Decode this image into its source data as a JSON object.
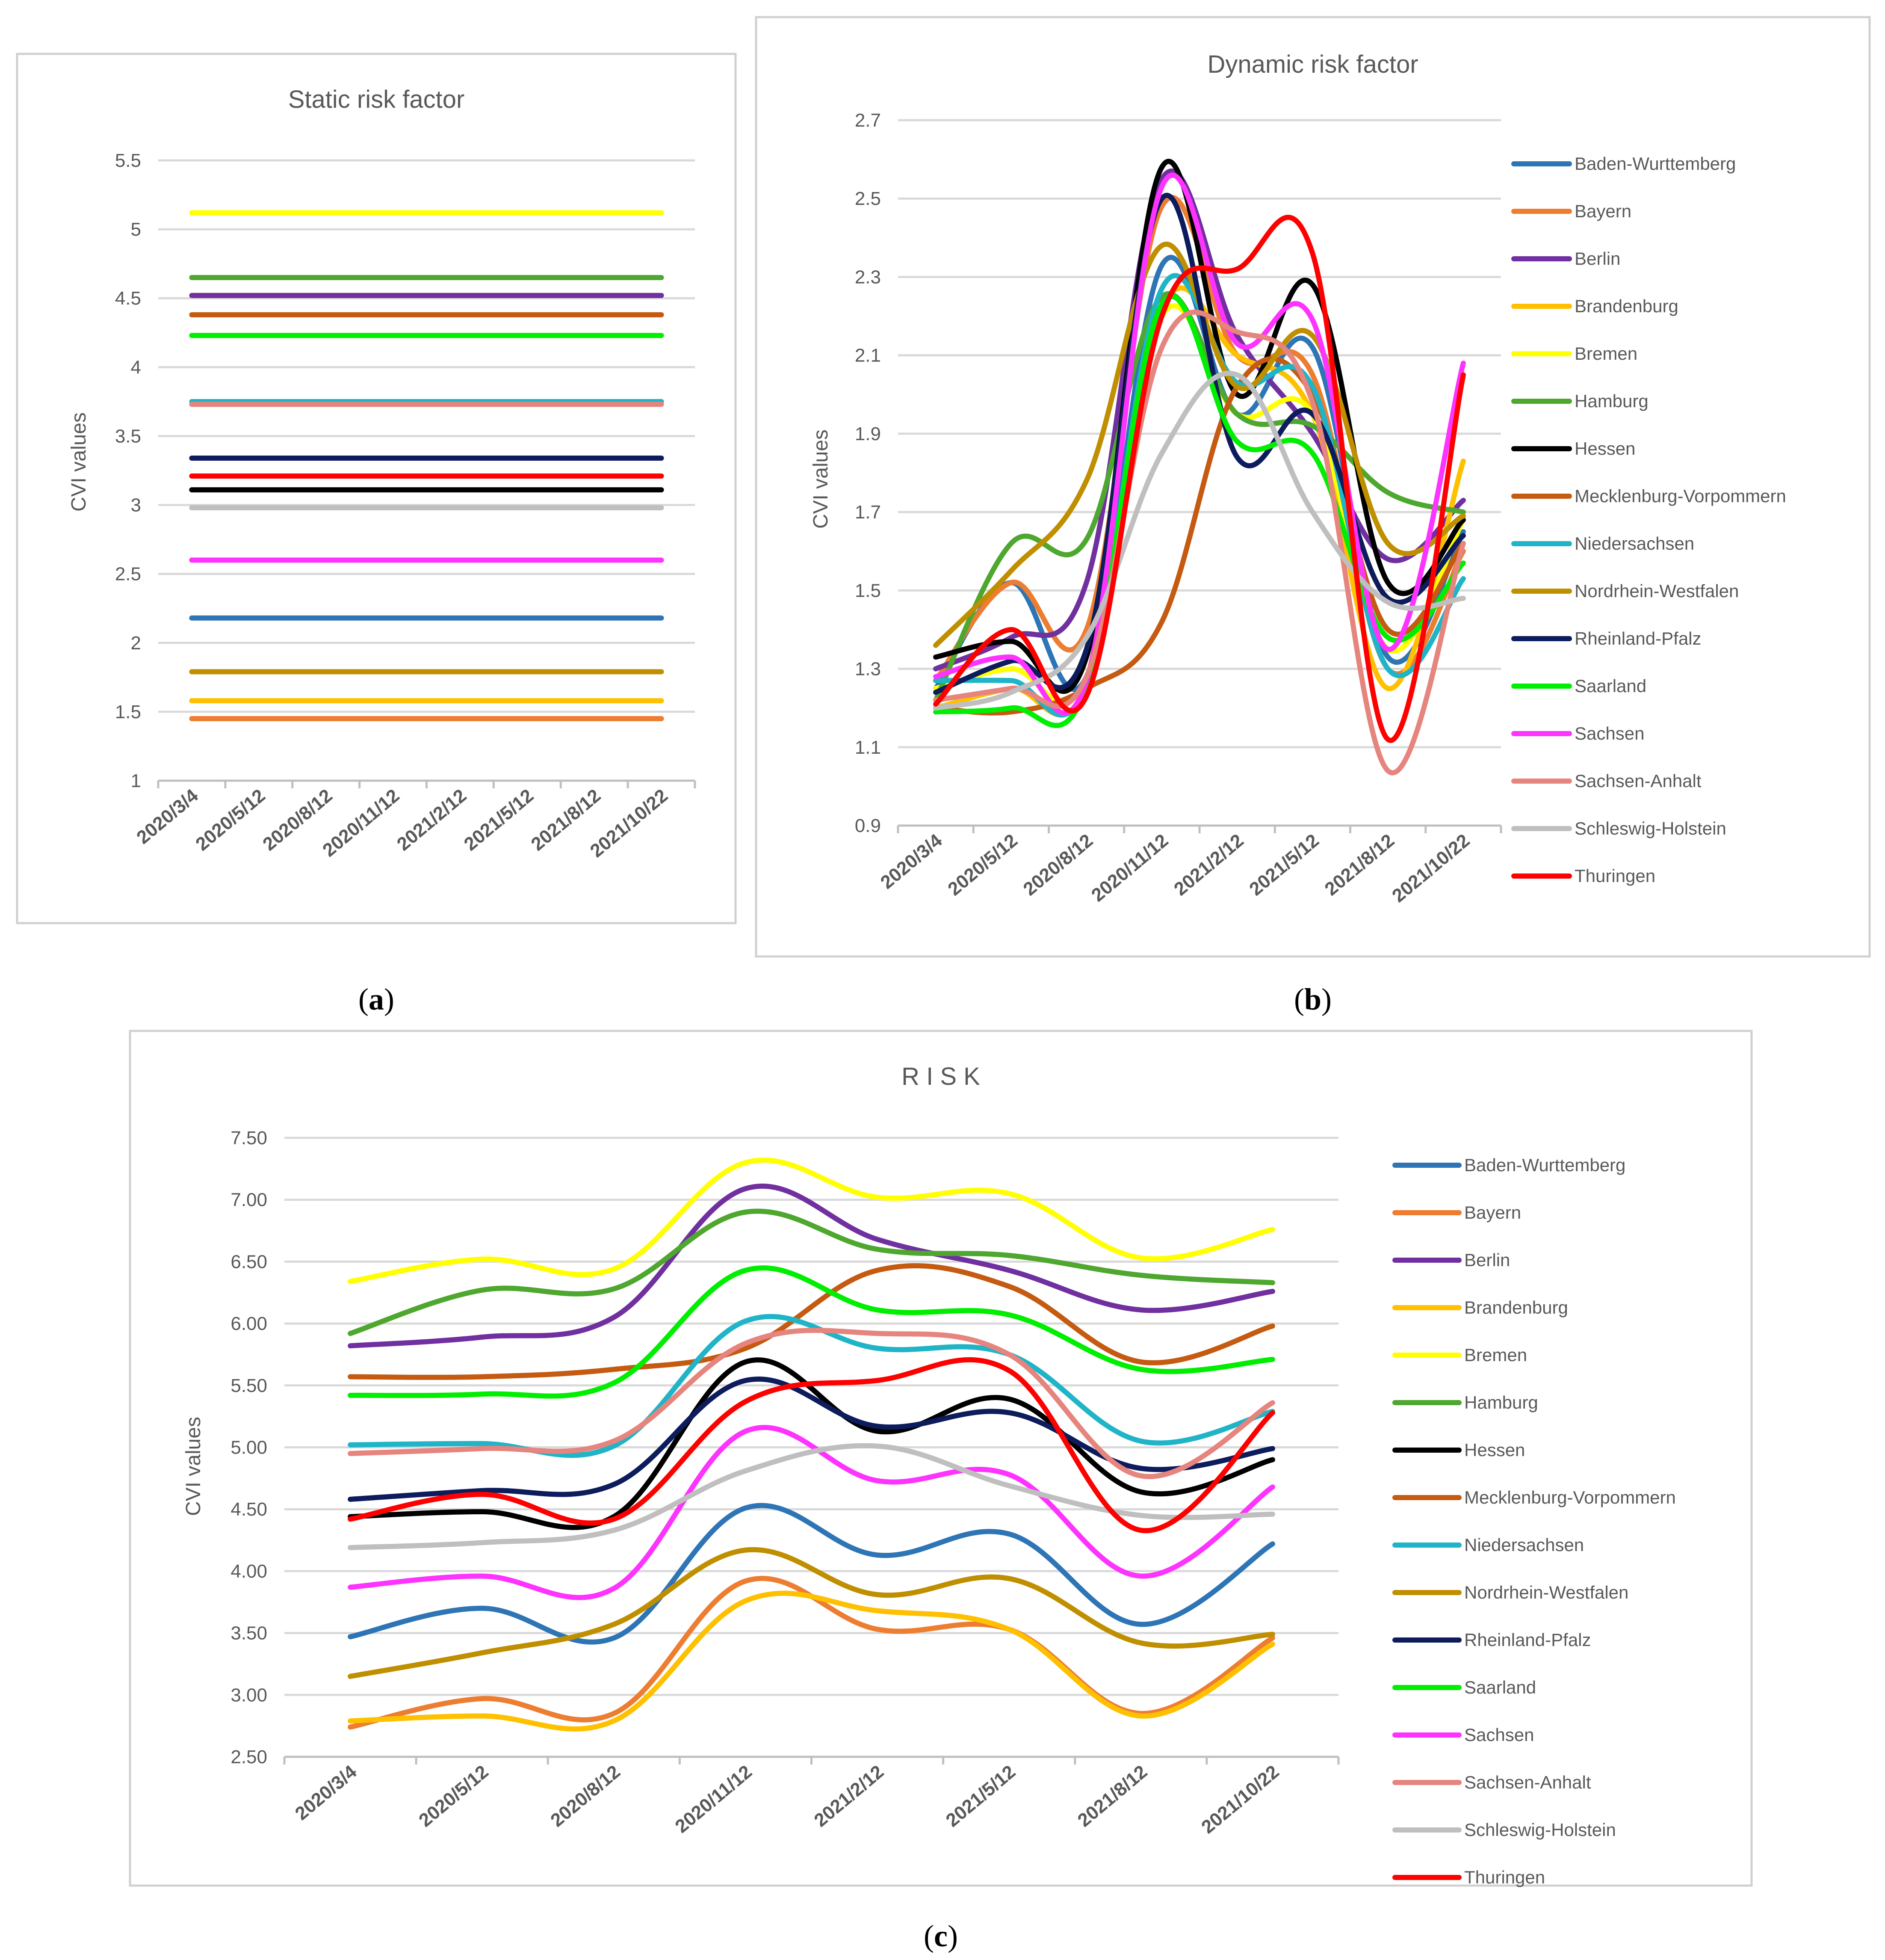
{
  "colors": {
    "Baden-Wurttemberg": "#2e75b6",
    "Bayern": "#ed7d31",
    "Berlin": "#7030a0",
    "Brandenburg": "#ffc000",
    "Bremen": "#ffff00",
    "Hamburg": "#4ea72e",
    "Hessen": "#000000",
    "Mecklenburg-Vorpommern": "#c55a11",
    "Niedersachsen": "#1fb4c7",
    "Nordrhein-Westfalen": "#bf8f00",
    "Rheinland-Pfalz": "#0d1c5c",
    "Saarland": "#00ee00",
    "Sachsen": "#ff33ff",
    "Sachsen-Anhalt": "#e6847e",
    "Schleswig-Holstein": "#bfbfbf",
    "Thuringen": "#ff0000"
  },
  "captions": {
    "a": "a",
    "b": "b",
    "c": "c"
  },
  "chart_data": [
    {
      "id": "a",
      "type": "line",
      "title": "Static risk factor",
      "xlabel": "",
      "ylabel": "CVI values",
      "ylim": [
        1,
        5.5
      ],
      "yticks": [
        "1",
        "1.5",
        "2",
        "2.5",
        "3",
        "3.5",
        "4",
        "4.5",
        "5",
        "5.5"
      ],
      "categories": [
        "2020/3/4",
        "2020/5/12",
        "2020/8/12",
        "2020/11/12",
        "2021/2/12",
        "2021/5/12",
        "2021/8/12",
        "2021/10/22"
      ],
      "grid": true,
      "legend": "none",
      "series": [
        {
          "name": "Bremen",
          "values": [
            5.12,
            5.12,
            5.12,
            5.12,
            5.12,
            5.12,
            5.12,
            5.12
          ]
        },
        {
          "name": "Hamburg",
          "values": [
            4.65,
            4.65,
            4.65,
            4.65,
            4.65,
            4.65,
            4.65,
            4.65
          ]
        },
        {
          "name": "Berlin",
          "values": [
            4.52,
            4.52,
            4.52,
            4.52,
            4.52,
            4.52,
            4.52,
            4.52
          ]
        },
        {
          "name": "Mecklenburg-Vorpommern",
          "values": [
            4.38,
            4.38,
            4.38,
            4.38,
            4.38,
            4.38,
            4.38,
            4.38
          ]
        },
        {
          "name": "Saarland",
          "values": [
            4.23,
            4.23,
            4.23,
            4.23,
            4.23,
            4.23,
            4.23,
            4.23
          ]
        },
        {
          "name": "Niedersachsen",
          "values": [
            3.75,
            3.75,
            3.75,
            3.75,
            3.75,
            3.75,
            3.75,
            3.75
          ]
        },
        {
          "name": "Sachsen-Anhalt",
          "values": [
            3.73,
            3.73,
            3.73,
            3.73,
            3.73,
            3.73,
            3.73,
            3.73
          ]
        },
        {
          "name": "Rheinland-Pfalz",
          "values": [
            3.34,
            3.34,
            3.34,
            3.34,
            3.34,
            3.34,
            3.34,
            3.34
          ]
        },
        {
          "name": "Thuringen",
          "values": [
            3.21,
            3.21,
            3.21,
            3.21,
            3.21,
            3.21,
            3.21,
            3.21
          ]
        },
        {
          "name": "Hessen",
          "values": [
            3.11,
            3.11,
            3.11,
            3.11,
            3.11,
            3.11,
            3.11,
            3.11
          ]
        },
        {
          "name": "Schleswig-Holstein",
          "values": [
            2.98,
            2.98,
            2.98,
            2.98,
            2.98,
            2.98,
            2.98,
            2.98
          ]
        },
        {
          "name": "Sachsen",
          "values": [
            2.6,
            2.6,
            2.6,
            2.6,
            2.6,
            2.6,
            2.6,
            2.6
          ]
        },
        {
          "name": "Baden-Wurttemberg",
          "values": [
            2.18,
            2.18,
            2.18,
            2.18,
            2.18,
            2.18,
            2.18,
            2.18
          ]
        },
        {
          "name": "Nordrhein-Westfalen",
          "values": [
            1.79,
            1.79,
            1.79,
            1.79,
            1.79,
            1.79,
            1.79,
            1.79
          ]
        },
        {
          "name": "Brandenburg",
          "values": [
            1.58,
            1.58,
            1.58,
            1.58,
            1.58,
            1.58,
            1.58,
            1.58
          ]
        },
        {
          "name": "Bayern",
          "values": [
            1.45,
            1.45,
            1.45,
            1.45,
            1.45,
            1.45,
            1.45,
            1.45
          ]
        }
      ]
    },
    {
      "id": "b",
      "type": "line",
      "title": "Dynamic risk factor",
      "xlabel": "",
      "ylabel": "CVI values",
      "ylim": [
        0.9,
        2.7
      ],
      "yticks": [
        "0.9",
        "1.1",
        "1.3",
        "1.5",
        "1.7",
        "1.9",
        "2.1",
        "2.3",
        "2.5",
        "2.7"
      ],
      "categories": [
        "2020/3/4",
        "2020/5/12",
        "2020/8/12",
        "2020/11/12",
        "2021/2/12",
        "2021/5/12",
        "2021/8/12",
        "2021/10/22"
      ],
      "grid": true,
      "legend": "right",
      "series": [
        {
          "name": "Baden-Wurttemberg",
          "values": [
            1.25,
            1.52,
            1.28,
            2.33,
            1.95,
            2.12,
            1.33,
            1.65
          ]
        },
        {
          "name": "Bayern",
          "values": [
            1.27,
            1.52,
            1.4,
            2.48,
            2.1,
            2.05,
            1.3,
            1.6
          ]
        },
        {
          "name": "Berlin",
          "values": [
            1.3,
            1.38,
            1.52,
            2.55,
            2.15,
            1.9,
            1.58,
            1.73
          ]
        },
        {
          "name": "Brandenburg",
          "values": [
            1.2,
            1.25,
            1.26,
            2.22,
            2.1,
            1.95,
            1.25,
            1.83
          ]
        },
        {
          "name": "Bremen",
          "values": [
            1.25,
            1.3,
            1.28,
            2.2,
            1.95,
            1.95,
            1.35,
            1.68
          ]
        },
        {
          "name": "Hamburg",
          "values": [
            1.22,
            1.62,
            1.63,
            2.25,
            1.95,
            1.92,
            1.75,
            1.7
          ]
        },
        {
          "name": "Hessen",
          "values": [
            1.33,
            1.37,
            1.33,
            2.58,
            2.0,
            2.28,
            1.52,
            1.68
          ]
        },
        {
          "name": "Mecklenburg-Vorpommern",
          "values": [
            1.2,
            1.19,
            1.25,
            1.42,
            2.02,
            2.0,
            1.4,
            1.62
          ]
        },
        {
          "name": "Niedersachsen",
          "values": [
            1.27,
            1.27,
            1.26,
            2.27,
            2.03,
            2.02,
            1.3,
            1.53
          ]
        },
        {
          "name": "Nordrhein-Westfalen",
          "values": [
            1.36,
            1.55,
            1.78,
            2.38,
            2.02,
            2.15,
            1.62,
            1.69
          ]
        },
        {
          "name": "Rheinland-Pfalz",
          "values": [
            1.24,
            1.32,
            1.35,
            2.5,
            1.84,
            1.95,
            1.48,
            1.64
          ]
        },
        {
          "name": "Saarland",
          "values": [
            1.19,
            1.2,
            1.25,
            2.23,
            1.88,
            1.85,
            1.38,
            1.57
          ]
        },
        {
          "name": "Sachsen",
          "values": [
            1.28,
            1.33,
            1.27,
            2.53,
            2.13,
            2.19,
            1.35,
            2.08
          ]
        },
        {
          "name": "Sachsen-Anhalt",
          "values": [
            1.22,
            1.25,
            1.28,
            2.12,
            2.16,
            1.98,
            1.04,
            1.62
          ]
        },
        {
          "name": "Schleswig-Holstein",
          "values": [
            1.2,
            1.24,
            1.38,
            1.85,
            2.05,
            1.7,
            1.47,
            1.48
          ]
        },
        {
          "name": "Thuringen",
          "values": [
            1.21,
            1.4,
            1.23,
            2.2,
            2.32,
            2.36,
            1.12,
            2.05
          ]
        }
      ]
    },
    {
      "id": "c",
      "type": "line",
      "title": "R I S K",
      "xlabel": "",
      "ylabel": "CVI values",
      "ylim": [
        2.5,
        7.5
      ],
      "yticks": [
        "2.50",
        "3.00",
        "3.50",
        "4.00",
        "4.50",
        "5.00",
        "5.50",
        "6.00",
        "6.50",
        "7.00",
        "7.50"
      ],
      "categories": [
        "2020/3/4",
        "2020/5/12",
        "2020/8/12",
        "2020/11/12",
        "2021/2/12",
        "2021/5/12",
        "2021/8/12",
        "2021/10/22"
      ],
      "grid": true,
      "legend": "right",
      "series": [
        {
          "name": "Baden-Wurttemberg",
          "values": [
            3.47,
            3.7,
            3.46,
            4.51,
            4.13,
            4.3,
            3.57,
            4.22
          ]
        },
        {
          "name": "Bayern",
          "values": [
            2.74,
            2.97,
            2.85,
            3.92,
            3.53,
            3.53,
            2.85,
            3.46
          ]
        },
        {
          "name": "Berlin",
          "values": [
            5.82,
            5.89,
            6.05,
            7.09,
            6.68,
            6.43,
            6.11,
            6.26
          ]
        },
        {
          "name": "Brandenburg",
          "values": [
            2.79,
            2.83,
            2.79,
            3.76,
            3.68,
            3.53,
            2.83,
            3.41
          ]
        },
        {
          "name": "Bremen",
          "values": [
            6.34,
            6.52,
            6.44,
            7.3,
            7.02,
            7.05,
            6.53,
            6.76
          ]
        },
        {
          "name": "Hamburg",
          "values": [
            5.92,
            6.27,
            6.28,
            6.9,
            6.6,
            6.55,
            6.39,
            6.33
          ]
        },
        {
          "name": "Hessen",
          "values": [
            4.44,
            4.48,
            4.44,
            5.69,
            5.13,
            5.39,
            4.64,
            4.9
          ]
        },
        {
          "name": "Mecklenburg-Vorpommern",
          "values": [
            5.57,
            5.57,
            5.63,
            5.8,
            6.43,
            6.3,
            5.69,
            5.98
          ]
        },
        {
          "name": "Niedersachsen",
          "values": [
            5.02,
            5.03,
            5.01,
            6.02,
            5.8,
            5.75,
            5.05,
            5.29
          ]
        },
        {
          "name": "Nordrhein-Westfalen",
          "values": [
            3.15,
            3.34,
            3.57,
            4.17,
            3.81,
            3.94,
            3.42,
            3.49
          ]
        },
        {
          "name": "Rheinland-Pfalz",
          "values": [
            4.58,
            4.65,
            4.7,
            5.54,
            5.17,
            5.28,
            4.83,
            4.99
          ]
        },
        {
          "name": "Saarland",
          "values": [
            5.42,
            5.43,
            5.52,
            6.43,
            6.11,
            6.07,
            5.63,
            5.71
          ]
        },
        {
          "name": "Sachsen",
          "values": [
            3.87,
            3.96,
            3.86,
            5.13,
            4.73,
            4.78,
            3.96,
            4.68
          ]
        },
        {
          "name": "Sachsen-Anhalt",
          "values": [
            4.95,
            4.99,
            5.05,
            5.84,
            5.92,
            5.75,
            4.77,
            5.36
          ]
        },
        {
          "name": "Schleswig-Holstein",
          "values": [
            4.19,
            4.23,
            4.33,
            4.81,
            5.01,
            4.69,
            4.45,
            4.46
          ]
        },
        {
          "name": "Thuringen",
          "values": [
            4.42,
            4.62,
            4.42,
            5.37,
            5.54,
            5.62,
            4.33,
            5.28
          ]
        }
      ]
    }
  ]
}
